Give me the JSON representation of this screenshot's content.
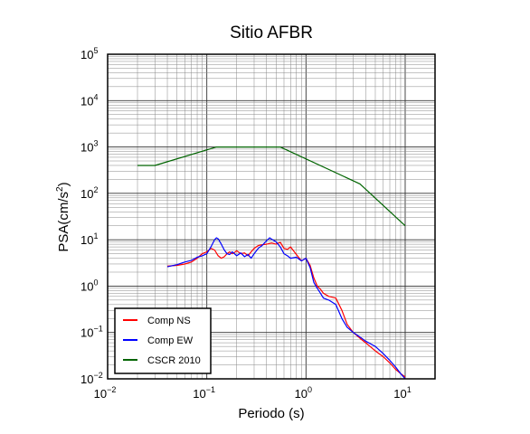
{
  "chart_data": {
    "type": "line",
    "title": "Sitio AFBR",
    "xlabel": "Periodo (s)",
    "ylabel_base": "PSA(cm/s",
    "ylabel_sup": "2",
    "ylabel_end": ")",
    "xscale": "log",
    "yscale": "log",
    "xlim": [
      0.01,
      20
    ],
    "ylim": [
      0.01,
      100000
    ],
    "x_ticks": [
      {
        "value": 0.01,
        "base": "10",
        "exp": "−2"
      },
      {
        "value": 0.1,
        "base": "10",
        "exp": "−1"
      },
      {
        "value": 1,
        "base": "10",
        "exp": "0"
      },
      {
        "value": 10,
        "base": "10",
        "exp": "1"
      }
    ],
    "y_ticks": [
      {
        "value": 0.01,
        "base": "10",
        "exp": "−2"
      },
      {
        "value": 0.1,
        "base": "10",
        "exp": "−1"
      },
      {
        "value": 1,
        "base": "10",
        "exp": "0"
      },
      {
        "value": 10,
        "base": "10",
        "exp": "1"
      },
      {
        "value": 100,
        "base": "10",
        "exp": "2"
      },
      {
        "value": 1000,
        "base": "10",
        "exp": "3"
      },
      {
        "value": 10000,
        "base": "10",
        "exp": "4"
      },
      {
        "value": 100000,
        "base": "10",
        "exp": "5"
      }
    ],
    "grid": true,
    "legend_position": "bottom-left",
    "series": [
      {
        "name": "Comp NS",
        "color": "#ff0000",
        "x": [
          0.04,
          0.05,
          0.06,
          0.07,
          0.08,
          0.09,
          0.1,
          0.11,
          0.12,
          0.13,
          0.14,
          0.15,
          0.16,
          0.17,
          0.18,
          0.19,
          0.2,
          0.22,
          0.24,
          0.26,
          0.28,
          0.3,
          0.33,
          0.36,
          0.4,
          0.45,
          0.5,
          0.55,
          0.6,
          0.65,
          0.7,
          0.8,
          0.9,
          1.0,
          1.1,
          1.2,
          1.3,
          1.4,
          1.5,
          1.7,
          2.0,
          2.3,
          2.6,
          3.0,
          3.5,
          4.0,
          5.0,
          6.0,
          7.0,
          8.0,
          9.0,
          10.0
        ],
        "y": [
          2.7,
          2.8,
          3.0,
          3.3,
          4.0,
          5.0,
          5.5,
          6.5,
          6.0,
          4.5,
          4.0,
          4.3,
          5.0,
          5.5,
          5.0,
          5.3,
          5.8,
          5.0,
          5.2,
          4.5,
          5.5,
          6.5,
          7.5,
          7.8,
          8.0,
          8.5,
          8.0,
          8.8,
          6.5,
          6.2,
          7.0,
          4.8,
          3.5,
          4.0,
          2.8,
          1.5,
          1.0,
          0.85,
          0.7,
          0.6,
          0.55,
          0.3,
          0.15,
          0.1,
          0.075,
          0.06,
          0.04,
          0.03,
          0.022,
          0.016,
          0.013,
          0.011
        ]
      },
      {
        "name": "Comp EW",
        "color": "#0000ff",
        "x": [
          0.04,
          0.05,
          0.06,
          0.07,
          0.08,
          0.09,
          0.1,
          0.11,
          0.12,
          0.125,
          0.13,
          0.14,
          0.15,
          0.16,
          0.17,
          0.18,
          0.19,
          0.2,
          0.22,
          0.24,
          0.26,
          0.28,
          0.3,
          0.33,
          0.36,
          0.4,
          0.43,
          0.46,
          0.5,
          0.55,
          0.6,
          0.65,
          0.7,
          0.8,
          0.9,
          1.0,
          1.1,
          1.2,
          1.3,
          1.4,
          1.5,
          1.7,
          2.0,
          2.3,
          2.6,
          3.0,
          3.5,
          4.0,
          5.0,
          6.0,
          7.0,
          8.0,
          9.0,
          10.0
        ],
        "y": [
          2.6,
          2.9,
          3.3,
          3.6,
          4.2,
          4.5,
          5.0,
          7.0,
          10.0,
          11.0,
          10.5,
          8.0,
          6.0,
          5.0,
          4.8,
          5.5,
          5.0,
          4.5,
          5.2,
          4.3,
          4.8,
          4.0,
          5.0,
          6.5,
          7.5,
          9.5,
          11.0,
          10.0,
          9.0,
          7.0,
          5.0,
          4.5,
          4.0,
          4.2,
          3.5,
          4.0,
          2.5,
          1.2,
          0.9,
          0.7,
          0.55,
          0.5,
          0.4,
          0.2,
          0.13,
          0.1,
          0.08,
          0.065,
          0.05,
          0.035,
          0.025,
          0.018,
          0.013,
          0.01
        ]
      },
      {
        "name": "CSCR 2010",
        "color": "#006400",
        "x": [
          0.02,
          0.03,
          0.125,
          0.55,
          3.5,
          10.0
        ],
        "y": [
          400,
          400,
          1000,
          1000,
          160,
          20
        ]
      }
    ]
  }
}
